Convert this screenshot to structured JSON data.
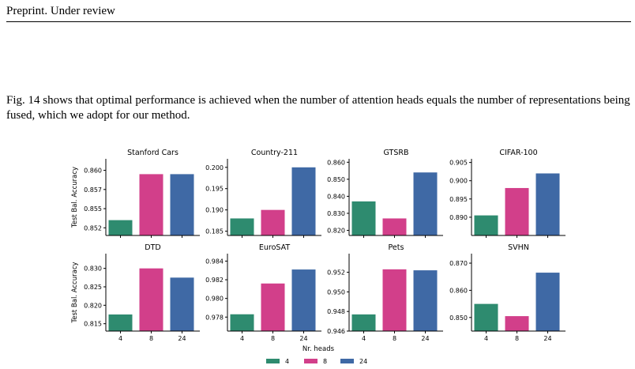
{
  "header": {
    "text": "Preprint. Under review"
  },
  "paragraph": "Fig. 14 shows that optimal performance is achieved when the number of attention heads equals the number of representations being fused, which we adopt for our method.",
  "chart_data": {
    "type": "bar",
    "xlabel": "Nr. heads",
    "ylabel": "Test Bal. Accuracy",
    "categories": [
      "4",
      "8",
      "24"
    ],
    "colors": [
      "#2e8b6f",
      "#d23f8a",
      "#3f69a5"
    ],
    "legend": {
      "placement": "bottom-center",
      "entries": [
        "4",
        "8",
        "24"
      ]
    },
    "panels": [
      {
        "title": "Stanford Cars",
        "values": [
          0.853,
          0.859,
          0.859
        ],
        "ylim": [
          0.851,
          0.861
        ],
        "ticks": [
          "0.852",
          "0.855",
          "0.857",
          "0.860"
        ],
        "tick_values": [
          0.852,
          0.8545,
          0.857,
          0.8595
        ]
      },
      {
        "title": "Country-211",
        "values": [
          0.188,
          0.19,
          0.2
        ],
        "ylim": [
          0.184,
          0.202
        ],
        "ticks": [
          "0.185",
          "0.190",
          "0.195",
          "0.200"
        ],
        "tick_values": [
          0.185,
          0.19,
          0.195,
          0.2
        ]
      },
      {
        "title": "GTSRB",
        "values": [
          0.837,
          0.827,
          0.854
        ],
        "ylim": [
          0.817,
          0.862
        ],
        "ticks": [
          "0.820",
          "0.830",
          "0.840",
          "0.850",
          "0.860"
        ],
        "tick_values": [
          0.82,
          0.83,
          0.84,
          0.85,
          0.86
        ]
      },
      {
        "title": "CIFAR-100",
        "values": [
          0.8905,
          0.898,
          0.902
        ],
        "ylim": [
          0.885,
          0.906
        ],
        "ticks": [
          "0.890",
          "0.895",
          "0.900",
          "0.905"
        ],
        "tick_values": [
          0.89,
          0.895,
          0.9,
          0.905
        ]
      },
      {
        "title": "DTD",
        "values": [
          0.8175,
          0.83,
          0.8275
        ],
        "ylim": [
          0.813,
          0.834
        ],
        "ticks": [
          "0.815",
          "0.820",
          "0.825",
          "0.830"
        ],
        "tick_values": [
          0.815,
          0.82,
          0.825,
          0.83
        ]
      },
      {
        "title": "EuroSAT",
        "values": [
          0.9783,
          0.9816,
          0.9831
        ],
        "ylim": [
          0.9765,
          0.9848
        ],
        "ticks": [
          "0.978",
          "0.980",
          "0.982",
          "0.984"
        ],
        "tick_values": [
          0.978,
          0.98,
          0.982,
          0.984
        ]
      },
      {
        "title": "Pets",
        "values": [
          0.9477,
          0.9523,
          0.9522
        ],
        "ylim": [
          0.946,
          0.9539
        ],
        "ticks": [
          "0.946",
          "0.948",
          "0.950",
          "0.952"
        ],
        "tick_values": [
          0.946,
          0.948,
          0.95,
          0.952
        ]
      },
      {
        "title": "SVHN",
        "values": [
          0.855,
          0.8505,
          0.8665
        ],
        "ylim": [
          0.845,
          0.8735
        ],
        "ticks": [
          "0.850",
          "0.860",
          "0.870"
        ],
        "tick_values": [
          0.85,
          0.86,
          0.87
        ]
      }
    ]
  }
}
